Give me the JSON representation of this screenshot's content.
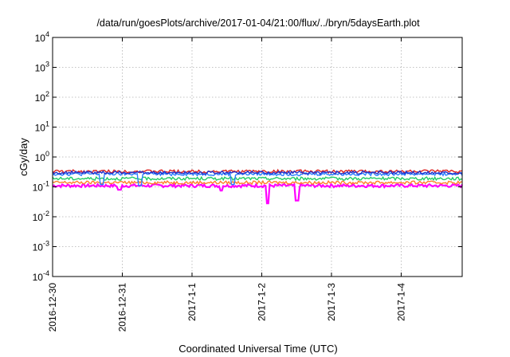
{
  "chart_data": {
    "type": "line",
    "title": "/data/run/goesPlots/archive/2017-01-04/21:00/flux/../bryn/5daysEarth.plot",
    "xlabel": "Coordinated Universal Time (UTC)",
    "ylabel": "cGy/day",
    "yscale": "log",
    "ylim": [
      0.0001,
      10000
    ],
    "xlim": [
      "2016-12-30",
      "2017-01-04 21:00"
    ],
    "grid": true,
    "xticks": [
      "2016-12-30",
      "2016-12-31",
      "2017-1-1",
      "2017-1-2",
      "2017-1-3",
      "2017-1-4"
    ],
    "yticks": [
      {
        "base": "10",
        "exp": "-4"
      },
      {
        "base": "10",
        "exp": "-3"
      },
      {
        "base": "10",
        "exp": "-2"
      },
      {
        "base": "10",
        "exp": "-1"
      },
      {
        "base": "10",
        "exp": "0"
      },
      {
        "base": "10",
        "exp": "1"
      },
      {
        "base": "10",
        "exp": "2"
      },
      {
        "base": "10",
        "exp": "3"
      },
      {
        "base": "10",
        "exp": "4"
      }
    ],
    "series": [
      {
        "color": "#ff00ff",
        "baseline": 0.11,
        "dips": [
          {
            "x": "2016-12-30 23:00",
            "y": 0.08
          },
          {
            "x": "2017-01-01 10:00",
            "y": 0.075
          },
          {
            "x": "2017-01-02 02:00",
            "y": 0.028
          },
          {
            "x": "2017-01-02 12:00",
            "y": 0.035
          }
        ]
      },
      {
        "color": "#ff7f2a",
        "baseline": 0.14,
        "dips": []
      },
      {
        "color": "#22cc66",
        "baseline": 0.19,
        "dips": []
      },
      {
        "color": "#2a7fff",
        "baseline": 0.27,
        "dips": [
          {
            "x": "2016-12-30 17:00",
            "y": 0.12
          },
          {
            "x": "2016-12-31 06:00",
            "y": 0.11
          },
          {
            "x": "2017-01-01 14:00",
            "y": 0.12
          }
        ]
      },
      {
        "color": "#dd2222",
        "baseline": 0.33,
        "dips": []
      },
      {
        "color": "#2233cc",
        "baseline": 0.3,
        "dips": []
      }
    ]
  }
}
